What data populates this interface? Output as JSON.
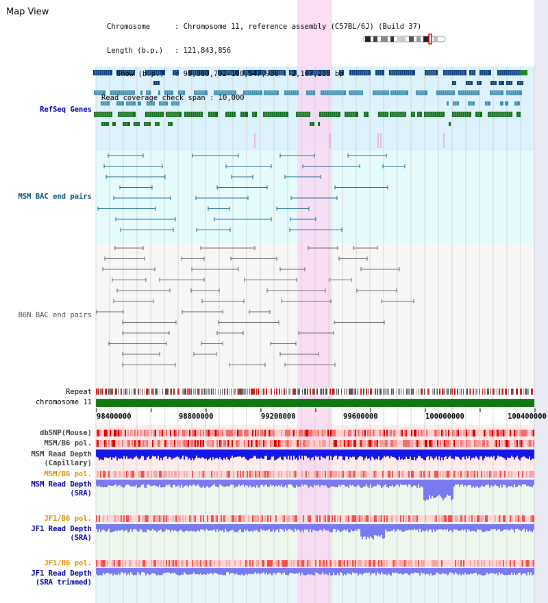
{
  "page": {
    "title": "Map View"
  },
  "info": {
    "chromosome_key": "Chromosome",
    "chromosome_val": "Chromosome 11, reference assembly (C57BL/6J) (Build 37)",
    "length_key": "Length (b.p.)",
    "length_val": "121,843,856",
    "show_key": "Show (b.p.)",
    "show_val": "98,380,702-100,547,936 : 2,167,235 bp",
    "span_key": "Read coverage check span",
    "span_val": "10,000"
  },
  "tracks": {
    "refseq": "RefSeq Genes",
    "msm_bac": "MSM BAC end pairs",
    "b6n_bac": "B6N BAC end pairs",
    "repeat": "Repeat",
    "chromosome": "chromosome 11",
    "dbsnp": "dbSNP(Mouse)",
    "msm_b6_pol_1": "MSM/B6 pol.",
    "msm_depth_cap_1": "MSM Read Depth",
    "msm_depth_cap_2": "(Capillary)",
    "msm_b6_pol_2": "MSM/B6 pol.",
    "msm_depth_sra_1": "MSM Read Depth",
    "msm_depth_sra_2": "(SRA)",
    "jf1_b6_pol_1": "JF1/B6 pol.",
    "jf1_depth_sra_1": "JF1 Read Depth",
    "jf1_depth_sra_2": "(SRA)",
    "jf1_b6_pol_2": "JF1/B6 pol.",
    "jf1_depth_trim_1": "JF1 Read Depth",
    "jf1_depth_trim_2": "(SRA trimmed)"
  },
  "axis": {
    "ticks": [
      "98400000",
      "98800000",
      "99200000",
      "99600000",
      "100000000",
      "100400000"
    ]
  },
  "colors": {
    "refseq_bg": "#ddf2fa",
    "msm_bac_bg": "#e6fbfb",
    "b6n_bac_bg": "#f7f7f7",
    "highlight": "#f8d8f2",
    "chromosome_bar": "#107810",
    "refseq_dark": "#0a3f7a",
    "refseq_mid": "#3f8fb0",
    "refseq_green": "#0f6d1b",
    "msm_pair": "#1a6a8a",
    "b6n_pair": "#666666",
    "depth_dark": "#1616e8",
    "depth_light": "#7a7af0",
    "label_blue": "#0000aa",
    "label_orange": "#e09000",
    "label_teal": "#0b5870"
  }
}
